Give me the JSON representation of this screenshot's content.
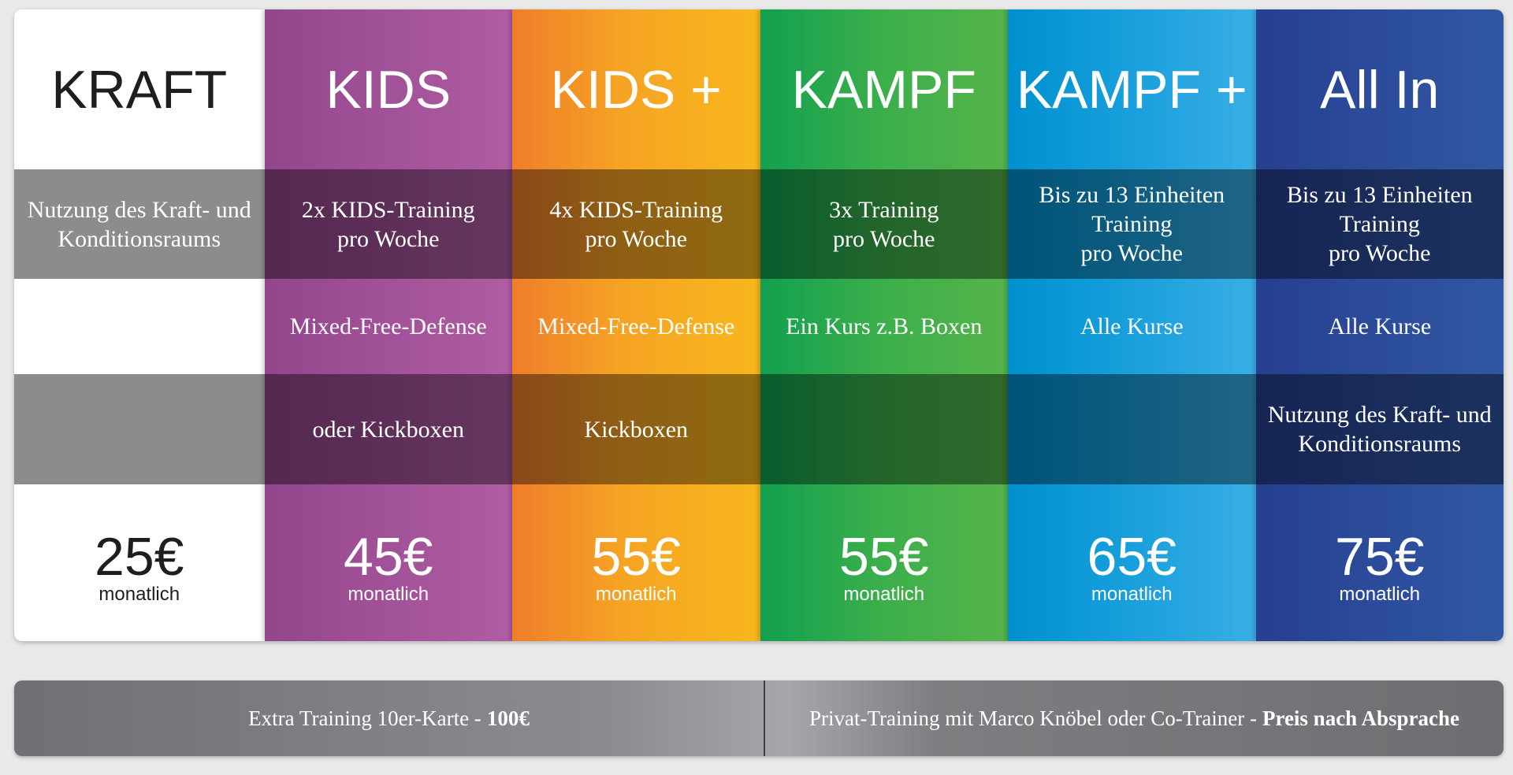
{
  "plans": [
    {
      "key": "kraft",
      "title": "KRAFT",
      "row1": "Nutzung des Kraft- und\nKonditionsraums",
      "row2": "",
      "row3": "",
      "price": "25€",
      "period": "monatlich",
      "color": "#ffffff"
    },
    {
      "key": "kids",
      "title": "KIDS",
      "row1": "2x KIDS-Training\npro Woche",
      "row2": "Mixed-Free-Defense",
      "row3": "oder Kickboxen",
      "price": "45€",
      "period": "monatlich",
      "color": "#a9559c"
    },
    {
      "key": "kidsplus",
      "title": "KIDS +",
      "row1": "4x KIDS-Training\npro Woche",
      "row2": "Mixed-Free-Defense",
      "row3": "Kickboxen",
      "price": "55€",
      "period": "monatlich",
      "color": "#f6a423"
    },
    {
      "key": "kampf",
      "title": "KAMPF",
      "row1": "3x Training\npro Woche",
      "row2": "Ein Kurs z.B. Boxen",
      "row3": "",
      "price": "55€",
      "period": "monatlich",
      "color": "#3caf4b"
    },
    {
      "key": "kampfplus",
      "title": "KAMPF +",
      "row1": "Bis zu 13 Einheiten\nTraining\npro Woche",
      "row2": "Alle Kurse",
      "row3": "",
      "price": "65€",
      "period": "monatlich",
      "color": "#169edb"
    },
    {
      "key": "allin",
      "title": "All In",
      "row1": "Bis zu 13 Einheiten\nTraining\npro Woche",
      "row2": "Alle Kurse",
      "row3": "Nutzung des Kraft- und\nKonditionsraums",
      "price": "75€",
      "period": "monatlich",
      "color": "#2c4c9b"
    }
  ],
  "footer": {
    "left_text": "Extra Training 10er-Karte -",
    "left_bold": "100€",
    "right_text": "Privat-Training mit Marco Knöbel oder Co-Trainer -",
    "right_bold": "Preis nach Absprache"
  }
}
